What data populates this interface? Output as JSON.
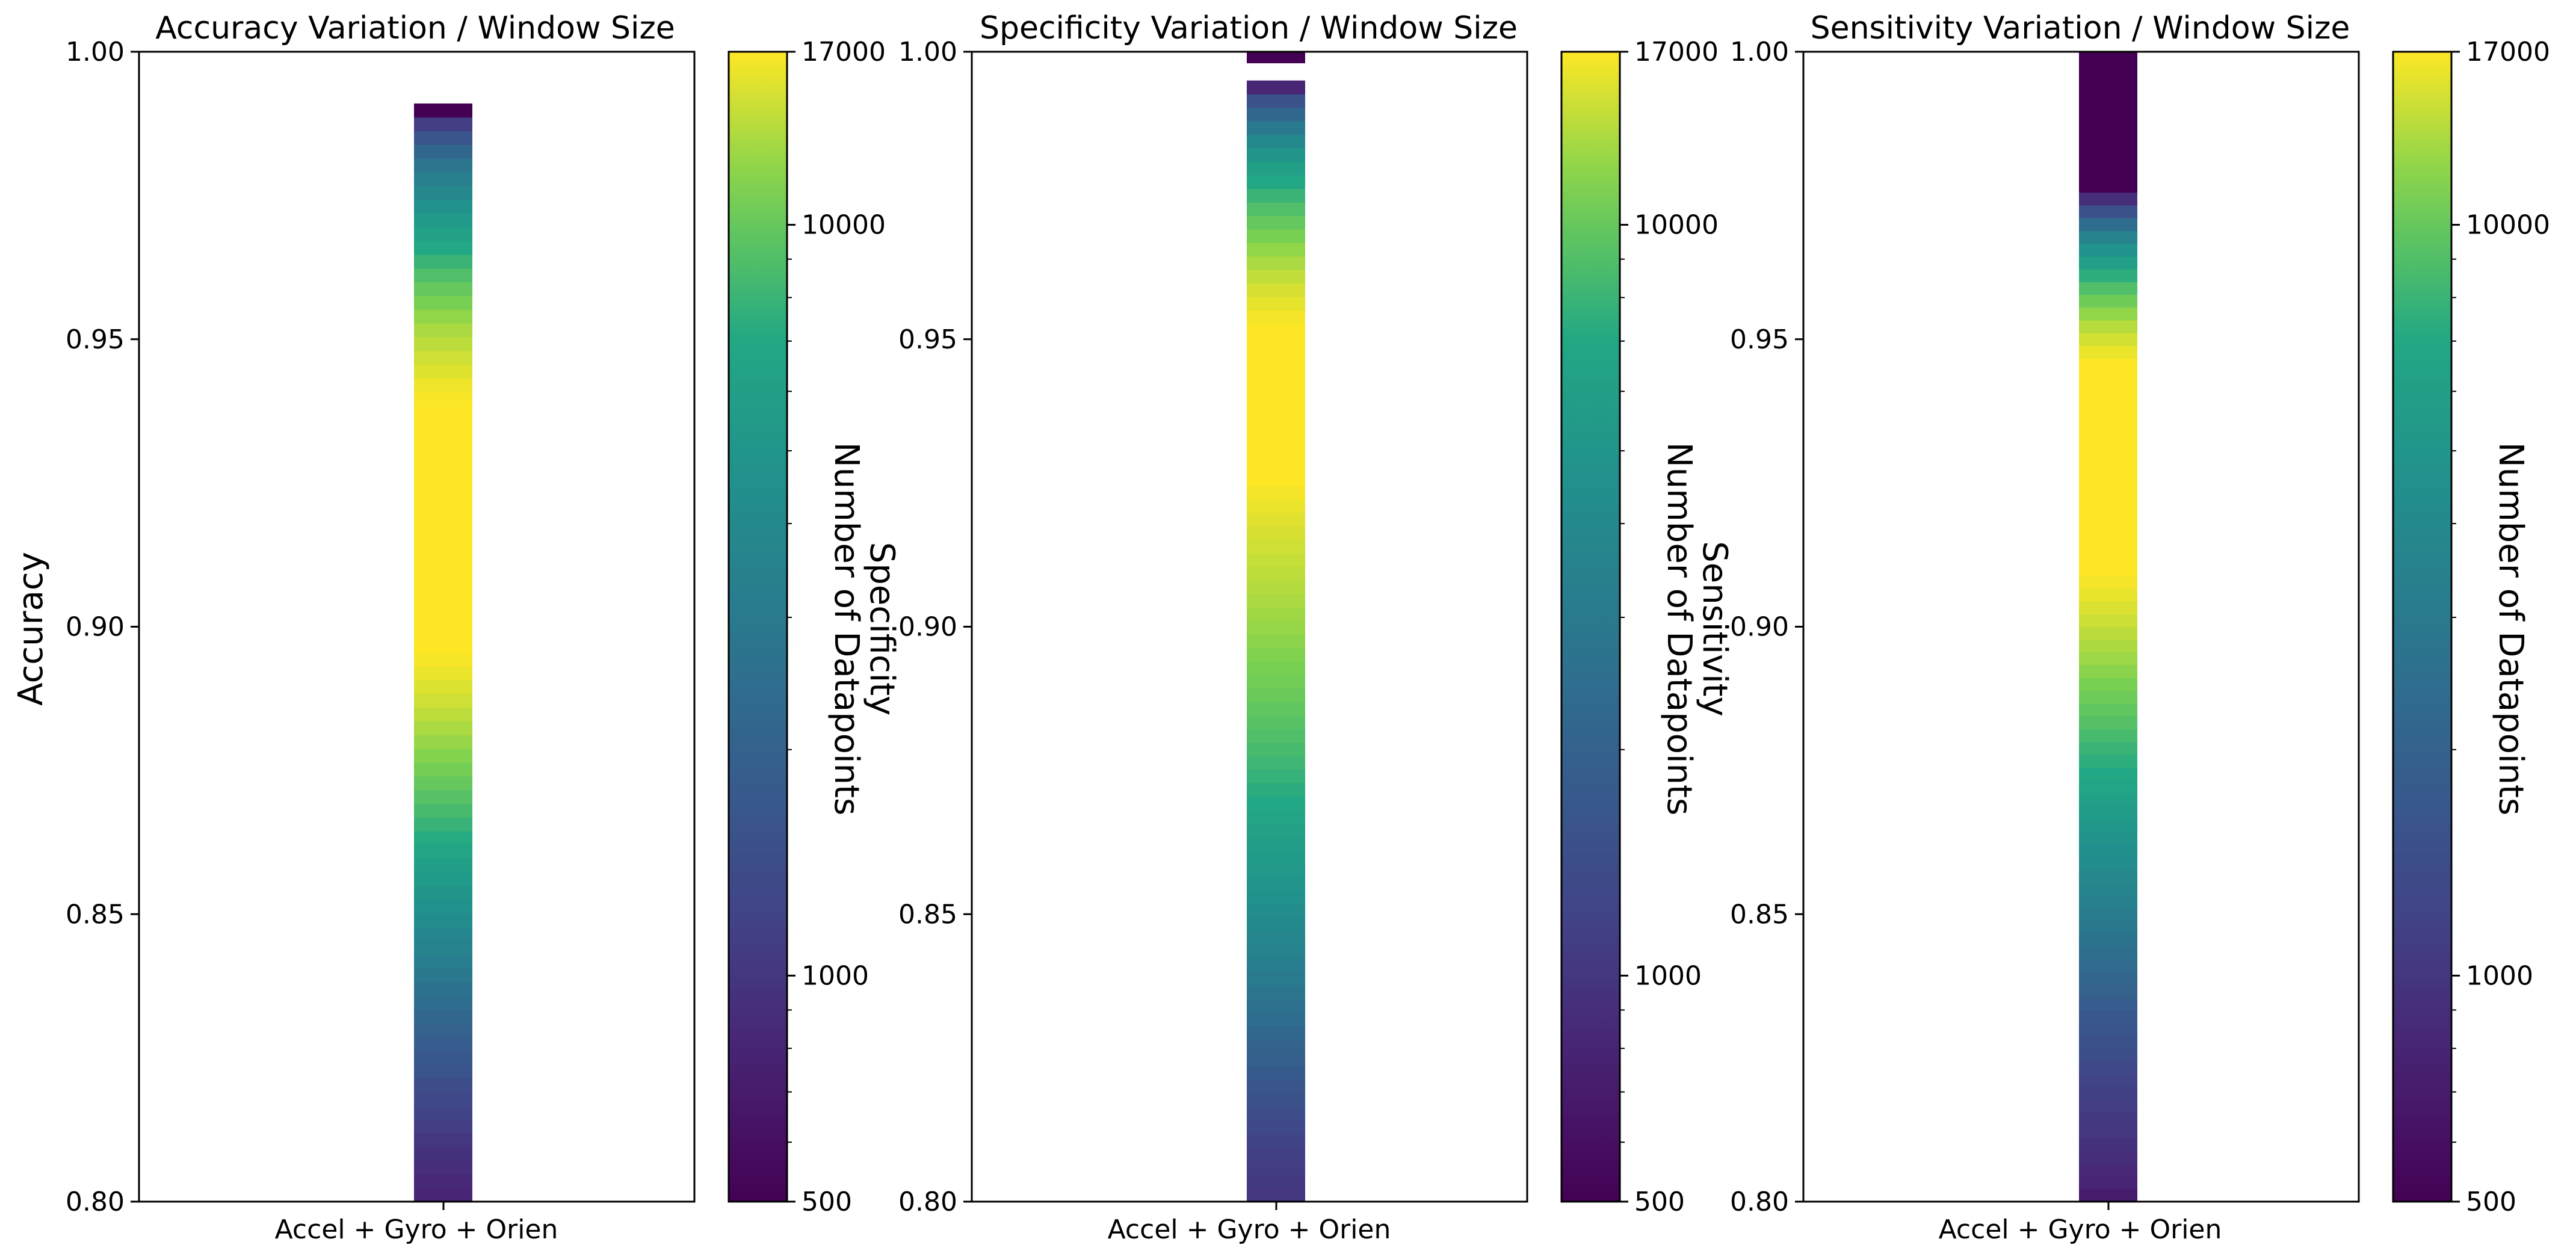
{
  "chart_data": [
    {
      "type": "heatmap",
      "title": "Accuracy Variation / Window Size",
      "xlabel": "",
      "ylabel": "Accuracy",
      "categories": [
        "Accel + Gyro + Orien"
      ],
      "ylim": [
        0.8,
        1.0
      ],
      "yticks": [
        "0.80",
        "0.85",
        "0.90",
        "0.95",
        "1.00"
      ],
      "ytick_values": [
        0.8,
        0.85,
        0.9,
        0.95,
        1.0
      ],
      "bin_start": 0.8,
      "bin_end": 0.991,
      "bin_counts": [
        800,
        850,
        900,
        950,
        1000,
        1100,
        1200,
        1300,
        1400,
        1550,
        1700,
        1850,
        2000,
        2200,
        2400,
        2650,
        2900,
        3200,
        3500,
        3850,
        4200,
        4600,
        5000,
        5500,
        6000,
        6600,
        7200,
        7900,
        8600,
        9300,
        10000,
        10800,
        11500,
        12300,
        13000,
        13800,
        14600,
        15300,
        16000,
        16600,
        17000,
        17000,
        17000,
        17000,
        17000,
        17000,
        17000,
        17000,
        17000,
        17000,
        17000,
        17000,
        17000,
        17000,
        17000,
        17000,
        17000,
        17000,
        16800,
        16200,
        15400,
        14600,
        13800,
        13000,
        12000,
        11000,
        10000,
        9000,
        8000,
        7000,
        6200,
        5400,
        4600,
        3900,
        3300,
        2800,
        2200,
        1600,
        1100,
        500
      ],
      "colorbar": {
        "label": "Number of Datapoints",
        "scale": "log",
        "vmin": 500,
        "vmax": 17000,
        "ticks": [
          500,
          1000,
          10000,
          17000
        ],
        "tick_labels": [
          "500",
          "1000",
          "10000",
          "17000"
        ]
      }
    },
    {
      "type": "heatmap",
      "title": "Specificity Variation / Window Size",
      "xlabel": "",
      "ylabel": "Specificity",
      "categories": [
        "Accel + Gyro + Orien"
      ],
      "ylim": [
        0.8,
        1.0
      ],
      "yticks": [
        "0.80",
        "0.85",
        "0.90",
        "0.95",
        "1.00"
      ],
      "ytick_values": [
        0.8,
        0.85,
        0.9,
        0.95,
        1.0
      ],
      "bin_start": 0.8,
      "bin_end": 0.995,
      "bin_counts": [
        1000,
        1050,
        1100,
        1150,
        1200,
        1300,
        1400,
        1500,
        1600,
        1750,
        1900,
        2050,
        2200,
        2400,
        2600,
        2800,
        3000,
        3250,
        3500,
        3750,
        4000,
        4300,
        4600,
        4900,
        5200,
        5500,
        5800,
        6200,
        6600,
        7000,
        7400,
        7800,
        8200,
        8600,
        9000,
        9400,
        9800,
        10200,
        10600,
        11000,
        11400,
        11800,
        12200,
        12600,
        13000,
        13400,
        13800,
        14200,
        14600,
        15000,
        15500,
        16000,
        16500,
        17000,
        17000,
        17000,
        17000,
        17000,
        17000,
        17000,
        17000,
        17000,
        17000,
        17000,
        17000,
        16500,
        15800,
        15000,
        14000,
        13000,
        12000,
        11000,
        10000,
        9000,
        8000,
        7000,
        6000,
        5000,
        4000,
        3000,
        2200,
        1500,
        800
      ],
      "extra_bins": [
        {
          "y0": 0.998,
          "y1": 1.0,
          "count": 500
        }
      ],
      "colorbar": {
        "label": "Number of Datapoints",
        "scale": "log",
        "vmin": 500,
        "vmax": 17000,
        "ticks": [
          500,
          1000,
          10000,
          17000
        ],
        "tick_labels": [
          "500",
          "1000",
          "10000",
          "17000"
        ]
      }
    },
    {
      "type": "heatmap",
      "title": "Sensitivity Variation / Window Size",
      "xlabel": "",
      "ylabel": "Sensitivity",
      "categories": [
        "Accel + Gyro + Orien"
      ],
      "ylim": [
        0.8,
        1.0
      ],
      "yticks": [
        "0.80",
        "0.85",
        "0.90",
        "0.95",
        "1.00"
      ],
      "ytick_values": [
        0.8,
        0.85,
        0.9,
        0.95,
        1.0
      ],
      "bin_start": 0.8,
      "bin_end": 1.0,
      "bin_counts": [
        700,
        800,
        850,
        900,
        950,
        1000,
        1050,
        1100,
        1150,
        1200,
        1300,
        1400,
        1500,
        1600,
        1700,
        1850,
        2000,
        2150,
        2300,
        2500,
        2700,
        2900,
        3100,
        3350,
        3600,
        3900,
        4200,
        4500,
        4800,
        5200,
        5600,
        6000,
        6500,
        7000,
        7500,
        8000,
        8600,
        9200,
        9800,
        10400,
        11000,
        11700,
        12400,
        13100,
        13800,
        14500,
        15200,
        15900,
        16500,
        17000,
        17000,
        17000,
        17000,
        17000,
        17000,
        17000,
        17000,
        17000,
        17000,
        17000,
        17000,
        17000,
        17000,
        17000,
        17000,
        17000,
        16000,
        14800,
        13500,
        12000,
        10500,
        9000,
        7500,
        6000,
        4700,
        3500,
        2400,
        1500,
        900,
        500,
        500,
        500,
        500,
        500,
        500,
        500,
        500,
        500,
        500,
        500
      ],
      "colorbar": {
        "label": "Number of Datapoints",
        "scale": "log",
        "vmin": 500,
        "vmax": 17000,
        "ticks": [
          500,
          1000,
          10000,
          17000
        ],
        "tick_labels": [
          "500",
          "1000",
          "10000",
          "17000"
        ]
      }
    }
  ]
}
